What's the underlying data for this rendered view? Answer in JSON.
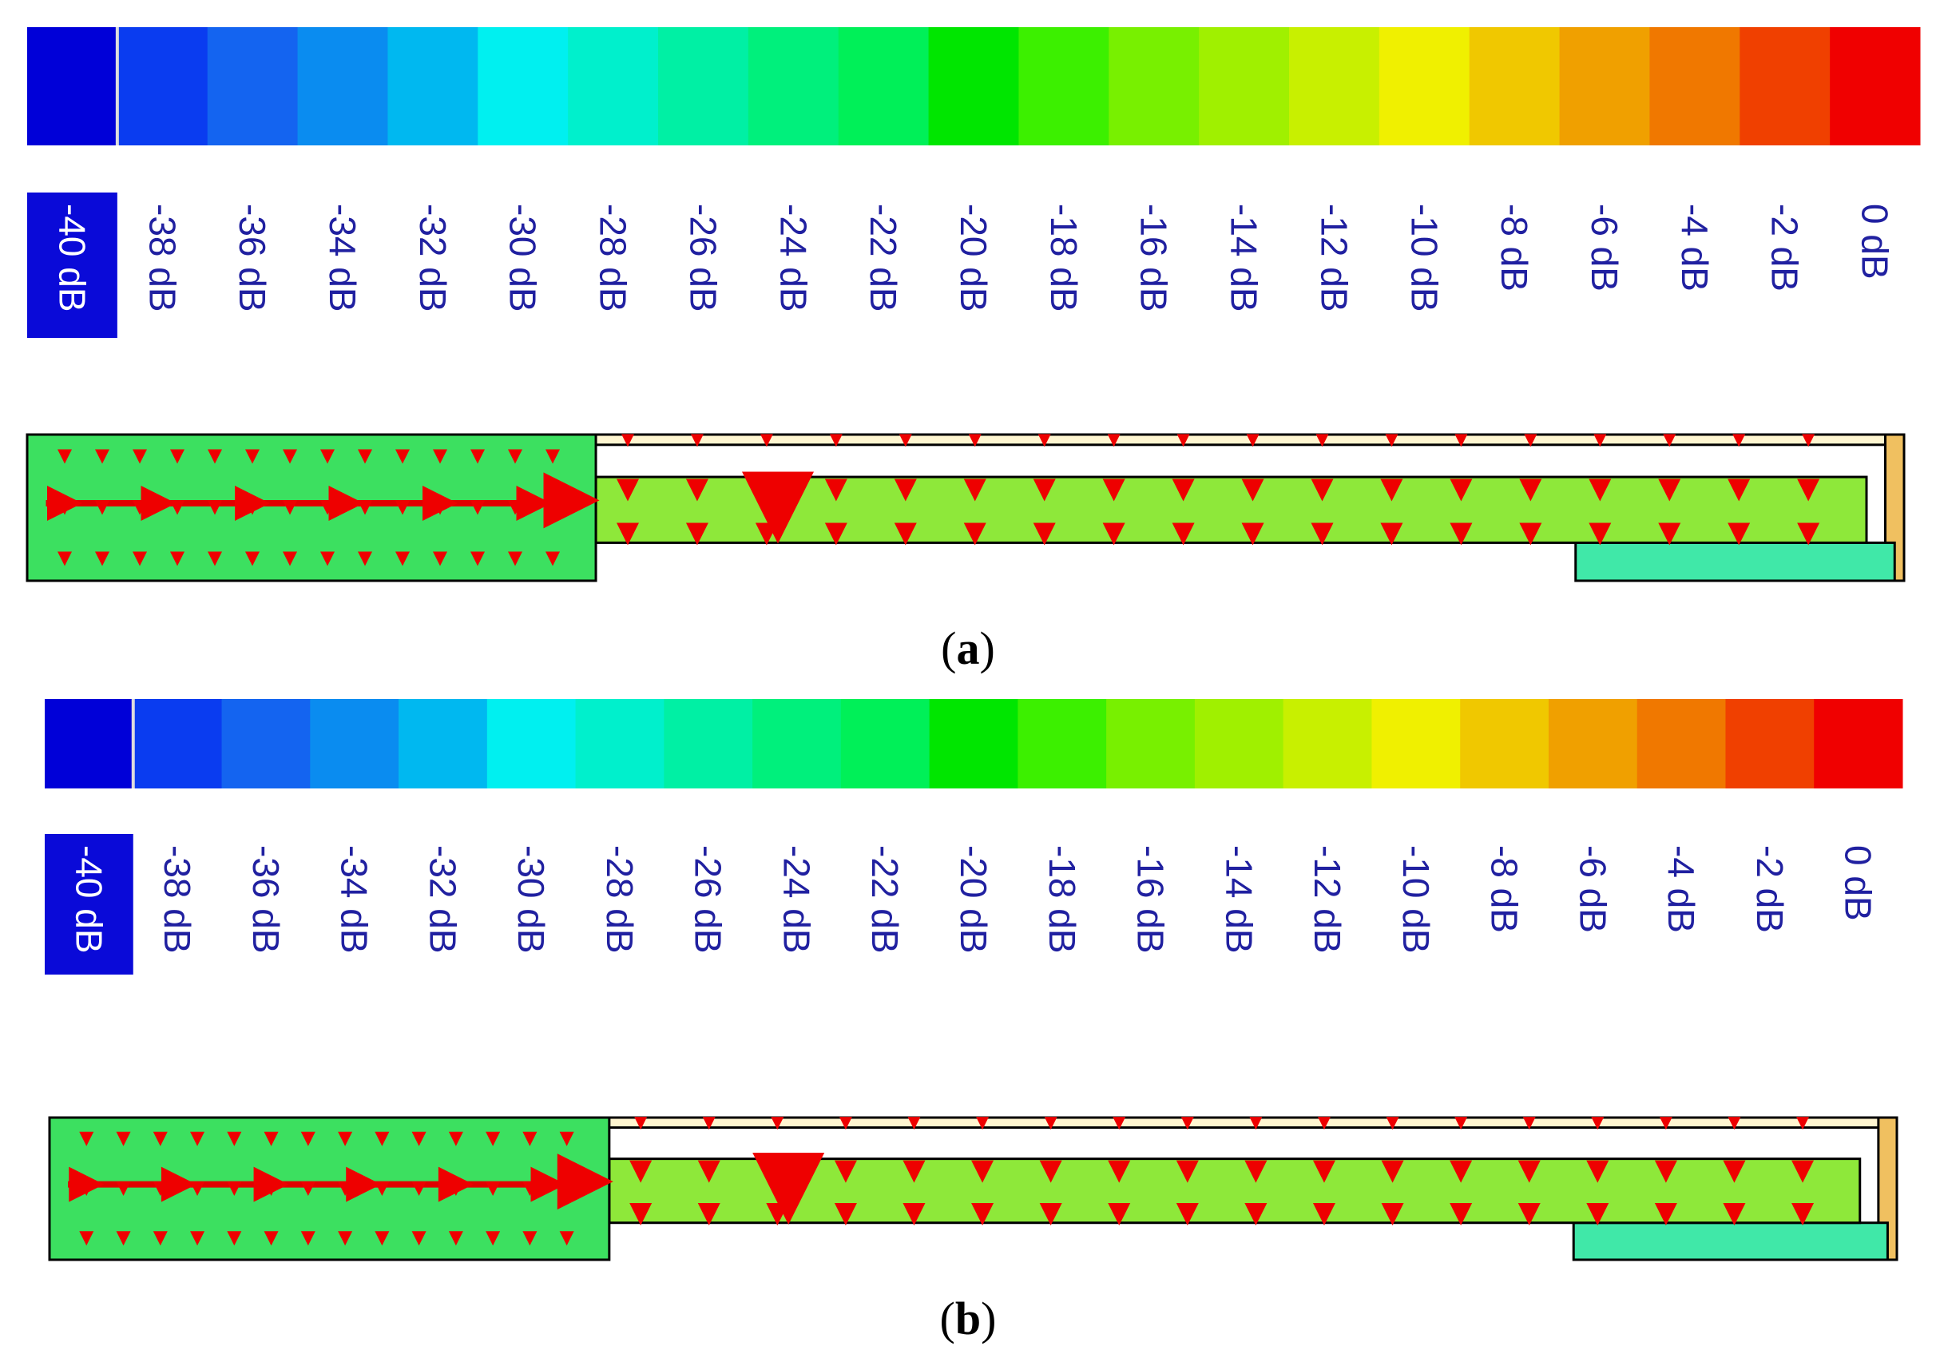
{
  "scale_colors": [
    "#0000d8",
    "#0a3cf0",
    "#1464f0",
    "#0a8cf0",
    "#00b8f0",
    "#00f0f0",
    "#00f0cc",
    "#00f0a4",
    "#00f07c",
    "#00f058",
    "#00e600",
    "#3cf000",
    "#78f000",
    "#a0f000",
    "#c8f000",
    "#f0f000",
    "#f0c800",
    "#f0a000",
    "#f07800",
    "#f04000",
    "#f00000"
  ],
  "panels": [
    {
      "scale_labels": [
        "-40 dB",
        "-38 dB",
        "-36 dB",
        "-34 dB",
        "-32 dB",
        "-30 dB",
        "-28 dB",
        "-26 dB",
        "-24 dB",
        "-22 dB",
        "-20 dB",
        "-18 dB",
        "-16 dB",
        "-14 dB",
        "-12 dB",
        "-10 dB",
        "-8 dB",
        "-6 dB",
        "-4 dB",
        "-2 dB",
        "0 dB"
      ],
      "caption": [
        "(",
        "a",
        ")"
      ]
    },
    {
      "scale_labels": [
        "-40 dB",
        "-38 dB",
        "-36 dB",
        "-34 dB",
        "-32 dB",
        "-30 dB",
        "-28 dB",
        "-26 dB",
        "-24 dB",
        "-22 dB",
        "-20 dB",
        "-18 dB",
        "-16 dB",
        "-14 dB",
        "-12 dB",
        "-10 dB",
        "-8 dB",
        "-6 dB",
        "-4 dB",
        "-2 dB",
        "0 dB"
      ],
      "caption": [
        "(",
        "b",
        ")"
      ]
    }
  ]
}
